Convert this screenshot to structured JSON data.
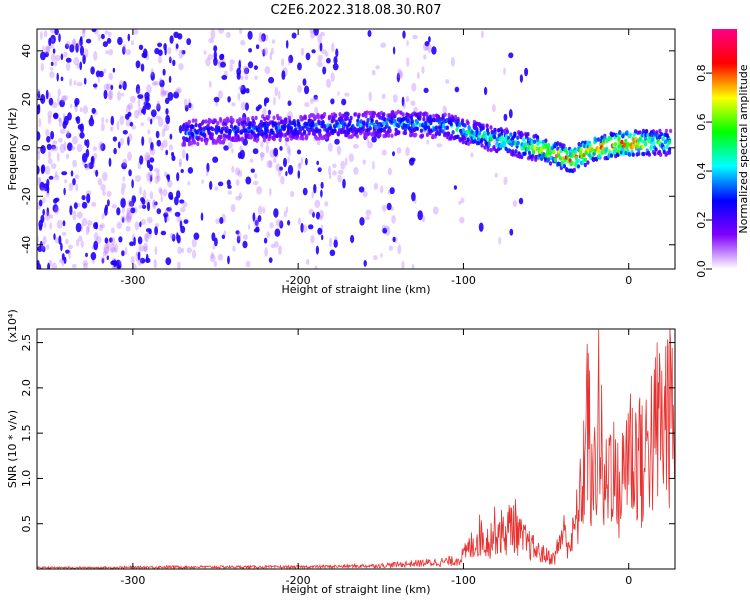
{
  "title": "C2E6.2022.318.08.30.R07",
  "chart_data": [
    {
      "type": "heatmap",
      "xlabel": "Height of straight line (km)",
      "ylabel": "Frequency (Hz)",
      "xlim": [
        -358,
        28
      ],
      "ylim": [
        -50,
        49
      ],
      "xticks": [
        -300,
        -200,
        -100,
        0
      ],
      "yticks": [
        -40,
        -20,
        0,
        20,
        40
      ],
      "colorbar": {
        "label": "Normalized spectral amplitude",
        "range": [
          0.0,
          0.98
        ],
        "ticks": [
          0.0,
          0.2,
          0.4,
          0.6,
          0.8
        ],
        "colormap": [
          "#ffffff",
          "#7f00ff",
          "#0000ff",
          "#00ffff",
          "#00ff00",
          "#ffff00",
          "#ff0000",
          "#ff0088"
        ]
      },
      "ridge": {
        "description_values": [
          {
            "x": -270,
            "y": 6,
            "amp": 0.4
          },
          {
            "x": -250,
            "y": 7,
            "amp": 0.3
          },
          {
            "x": -220,
            "y": 8,
            "amp": 0.35
          },
          {
            "x": -180,
            "y": 9,
            "amp": 0.35
          },
          {
            "x": -140,
            "y": 10,
            "amp": 0.4
          },
          {
            "x": -110,
            "y": 9,
            "amp": 0.45
          },
          {
            "x": -90,
            "y": 5,
            "amp": 0.5
          },
          {
            "x": -70,
            "y": 2,
            "amp": 0.55
          },
          {
            "x": -50,
            "y": -1,
            "amp": 0.7
          },
          {
            "x": -35,
            "y": -5,
            "amp": 0.85
          },
          {
            "x": -20,
            "y": 0,
            "amp": 0.8
          },
          {
            "x": 0,
            "y": 2,
            "amp": 0.95
          },
          {
            "x": 25,
            "y": 2,
            "amp": 0.5
          }
        ]
      }
    },
    {
      "type": "line",
      "xlabel": "Height of straight line (km)",
      "ylabel": "SNR (10 * v/v)",
      "y_multiplier": "(x10⁴)",
      "xlim": [
        -358,
        28
      ],
      "ylim": [
        0,
        2.65
      ],
      "xticks": [
        -300,
        -200,
        -100,
        0
      ],
      "yticks": [
        0.5,
        1.0,
        1.5,
        2.0,
        2.5
      ],
      "color": "#e8312f",
      "series": [
        {
          "x": [
            -358,
            -320,
            -280,
            -240,
            -200,
            -170,
            -150,
            -130,
            -115,
            -105,
            -100,
            -95,
            -90,
            -85,
            -80,
            -75,
            -70,
            -65,
            -60,
            -55,
            -50,
            -45,
            -40,
            -35,
            -30,
            -28,
            -25,
            -22,
            -20,
            -18,
            -15,
            -12,
            -10,
            -8,
            -5,
            -2,
            0,
            3,
            6,
            9,
            12,
            15,
            18,
            21,
            24,
            27
          ],
          "y": [
            0.02,
            0.02,
            0.03,
            0.03,
            0.03,
            0.04,
            0.05,
            0.08,
            0.1,
            0.12,
            0.2,
            0.35,
            0.5,
            0.4,
            0.6,
            0.5,
            0.7,
            0.45,
            0.35,
            0.25,
            0.2,
            0.15,
            0.55,
            0.35,
            0.9,
            1.2,
            2.4,
            1.0,
            1.6,
            2.4,
            1.0,
            1.5,
            1.8,
            1.2,
            1.1,
            1.6,
            2.0,
            1.5,
            1.9,
            1.3,
            2.1,
            1.8,
            2.25,
            2.0,
            2.55,
            2.2
          ]
        }
      ]
    }
  ]
}
